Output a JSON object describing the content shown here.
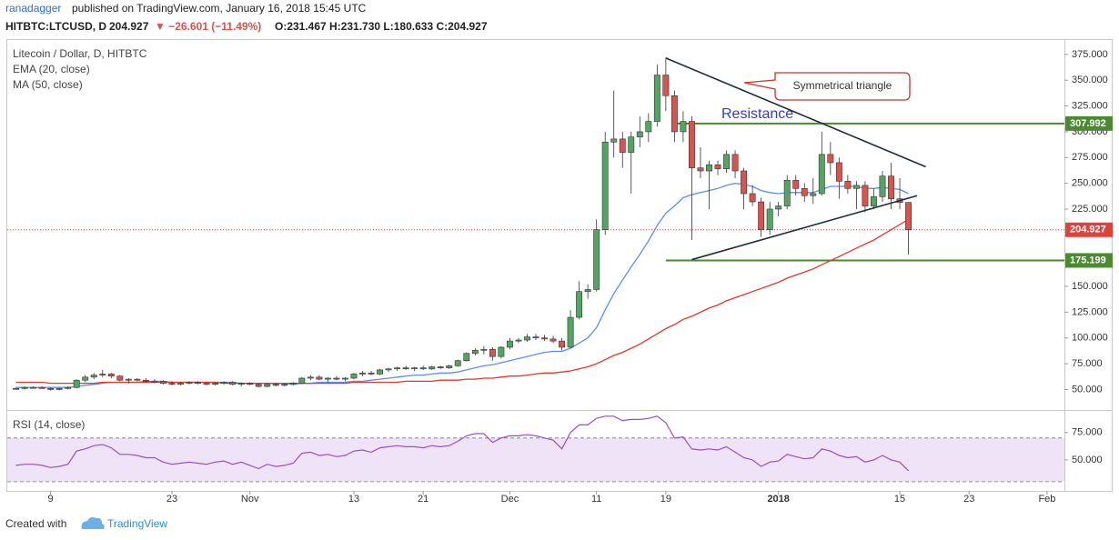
{
  "header": {
    "author": "ranadagger",
    "published": "published on TradingView.com, January 16, 2018 15:45 UTC",
    "symbol": "HITBTC:LTCUSD, D",
    "price": "204.927",
    "change": "▼ −26.601 (−11.49%)",
    "ohlc": "O:231.467 H:231.730 L:180.633 C:204.927"
  },
  "footer": {
    "created": "Created with",
    "brand": "TradingView"
  },
  "chart_data": {
    "type": "candlestick",
    "title": "Litecoin / Dollar, D, HITBTC",
    "xlim": [
      "2017-10-04",
      "2018-02-03"
    ],
    "xticks": [
      {
        "value": "2017-10-09",
        "label": "9"
      },
      {
        "value": "2017-10-23",
        "label": "23"
      },
      {
        "value": "2017-11-01",
        "label": "Nov"
      },
      {
        "value": "2017-11-13",
        "label": "13"
      },
      {
        "value": "2017-11-21",
        "label": "21"
      },
      {
        "value": "2017-12-01",
        "label": "Dec"
      },
      {
        "value": "2017-12-11",
        "label": "11"
      },
      {
        "value": "2017-12-19",
        "label": "19"
      },
      {
        "value": "2018-01-01",
        "label": "2018"
      },
      {
        "value": "2018-01-15",
        "label": "15"
      },
      {
        "value": "2018-01-23",
        "label": "23"
      },
      {
        "value": "2018-02-01",
        "label": "Feb"
      }
    ],
    "ylim": [
      31,
      389
    ],
    "yticks": [
      {
        "value": 50,
        "label": "50.000"
      },
      {
        "value": 75,
        "label": "75.000"
      },
      {
        "value": 100,
        "label": "100.000"
      },
      {
        "value": 125,
        "label": "125.000"
      },
      {
        "value": 150,
        "label": "150.000"
      },
      {
        "value": 225,
        "label": "225.000"
      },
      {
        "value": 250,
        "label": "250.000"
      },
      {
        "value": 275,
        "label": "275.000"
      },
      {
        "value": 300,
        "label": "300.000"
      },
      {
        "value": 325,
        "label": "325.000"
      },
      {
        "value": 350,
        "label": "350.000"
      },
      {
        "value": 375,
        "label": "375.000"
      }
    ],
    "up_color": "#53a562",
    "down_color": "#d9534f",
    "x": [
      "2017-10-05",
      "2017-10-06",
      "2017-10-07",
      "2017-10-08",
      "2017-10-09",
      "2017-10-10",
      "2017-10-11",
      "2017-10-12",
      "2017-10-13",
      "2017-10-14",
      "2017-10-15",
      "2017-10-16",
      "2017-10-17",
      "2017-10-18",
      "2017-10-19",
      "2017-10-20",
      "2017-10-21",
      "2017-10-22",
      "2017-10-23",
      "2017-10-24",
      "2017-10-25",
      "2017-10-26",
      "2017-10-27",
      "2017-10-28",
      "2017-10-29",
      "2017-10-30",
      "2017-10-31",
      "2017-11-01",
      "2017-11-02",
      "2017-11-03",
      "2017-11-04",
      "2017-11-05",
      "2017-11-06",
      "2017-11-07",
      "2017-11-08",
      "2017-11-09",
      "2017-11-10",
      "2017-11-11",
      "2017-11-12",
      "2017-11-13",
      "2017-11-14",
      "2017-11-15",
      "2017-11-16",
      "2017-11-17",
      "2017-11-18",
      "2017-11-19",
      "2017-11-20",
      "2017-11-21",
      "2017-11-22",
      "2017-11-23",
      "2017-11-24",
      "2017-11-25",
      "2017-11-26",
      "2017-11-27",
      "2017-11-28",
      "2017-11-29",
      "2017-11-30",
      "2017-12-01",
      "2017-12-02",
      "2017-12-03",
      "2017-12-04",
      "2017-12-05",
      "2017-12-06",
      "2017-12-07",
      "2017-12-08",
      "2017-12-09",
      "2017-12-10",
      "2017-12-11",
      "2017-12-12",
      "2017-12-13",
      "2017-12-14",
      "2017-12-15",
      "2017-12-16",
      "2017-12-17",
      "2017-12-18",
      "2017-12-19",
      "2017-12-20",
      "2017-12-21",
      "2017-12-22",
      "2017-12-23",
      "2017-12-24",
      "2017-12-25",
      "2017-12-26",
      "2017-12-27",
      "2017-12-28",
      "2017-12-29",
      "2017-12-30",
      "2017-12-31",
      "2018-01-01",
      "2018-01-02",
      "2018-01-03",
      "2018-01-04",
      "2018-01-05",
      "2018-01-06",
      "2018-01-07",
      "2018-01-08",
      "2018-01-09",
      "2018-01-10",
      "2018-01-11",
      "2018-01-12",
      "2018-01-13",
      "2018-01-14",
      "2018-01-15",
      "2018-01-16"
    ],
    "open": [
      51,
      51,
      52,
      52,
      51,
      50,
      51,
      52,
      59,
      62,
      64,
      65,
      63,
      59,
      60,
      59,
      58,
      58,
      56,
      55,
      56,
      57,
      56,
      55,
      56,
      57,
      55,
      56,
      55,
      53,
      55,
      54,
      55,
      56,
      61,
      62,
      60,
      61,
      60,
      61,
      65,
      66,
      65,
      69,
      70,
      71,
      70,
      71,
      70,
      72,
      71,
      73,
      78,
      85,
      88,
      89,
      82,
      91,
      97,
      98,
      101,
      100,
      99,
      97,
      91,
      120,
      145,
      147,
      205,
      290,
      293,
      280,
      295,
      300,
      310,
      355,
      335,
      300,
      310,
      265,
      262,
      268,
      264,
      278,
      262,
      240,
      232,
      205,
      225,
      228,
      253,
      245,
      238,
      240,
      278,
      270,
      252,
      245,
      248,
      228,
      237,
      257,
      235,
      231.467
    ],
    "high": [
      52,
      53,
      53,
      53,
      52,
      52,
      53,
      60,
      64,
      66,
      69,
      66,
      64,
      61,
      61,
      61,
      60,
      59,
      58,
      57,
      58,
      58,
      57,
      57,
      58,
      58,
      57,
      57,
      56,
      56,
      56,
      56,
      57,
      62,
      64,
      64,
      62,
      63,
      62,
      66,
      68,
      68,
      70,
      71,
      72,
      73,
      72,
      73,
      73,
      73,
      74,
      79,
      86,
      90,
      92,
      91,
      92,
      100,
      100,
      104,
      104,
      103,
      102,
      100,
      127,
      155,
      152,
      215,
      300,
      340,
      300,
      300,
      315,
      318,
      365,
      372,
      340,
      320,
      315,
      285,
      272,
      272,
      282,
      282,
      265,
      248,
      236,
      232,
      232,
      258,
      258,
      250,
      255,
      300,
      290,
      275,
      258,
      252,
      252,
      245,
      262,
      270,
      255,
      231.73
    ],
    "low": [
      50,
      50,
      51,
      51,
      49,
      49,
      50,
      51,
      57,
      60,
      62,
      61,
      58,
      56,
      58,
      57,
      56,
      55,
      54,
      54,
      55,
      55,
      54,
      54,
      55,
      54,
      53,
      54,
      52,
      52,
      53,
      53,
      54,
      55,
      59,
      59,
      57,
      59,
      58,
      60,
      63,
      64,
      64,
      67,
      68,
      69,
      68,
      69,
      69,
      70,
      70,
      72,
      77,
      83,
      84,
      78,
      80,
      89,
      95,
      96,
      98,
      97,
      95,
      88,
      90,
      118,
      138,
      145,
      200,
      275,
      265,
      240,
      285,
      290,
      305,
      320,
      290,
      290,
      195,
      255,
      225,
      258,
      260,
      255,
      225,
      228,
      198,
      200,
      218,
      225,
      238,
      232,
      230,
      238,
      258,
      235,
      240,
      225,
      222,
      225,
      232,
      225,
      225,
      180.633
    ],
    "close": [
      51,
      52,
      52,
      51,
      50,
      51,
      52,
      59,
      62,
      64,
      65,
      63,
      59,
      60,
      59,
      58,
      58,
      56,
      55,
      56,
      57,
      56,
      55,
      56,
      57,
      55,
      56,
      55,
      53,
      55,
      54,
      55,
      56,
      61,
      62,
      60,
      61,
      60,
      61,
      65,
      66,
      65,
      69,
      70,
      71,
      70,
      71,
      70,
      72,
      71,
      73,
      78,
      85,
      88,
      89,
      82,
      91,
      97,
      98,
      101,
      100,
      99,
      97,
      91,
      120,
      145,
      147,
      205,
      290,
      293,
      280,
      295,
      300,
      310,
      355,
      335,
      300,
      310,
      265,
      262,
      268,
      264,
      278,
      262,
      240,
      232,
      205,
      225,
      228,
      253,
      245,
      238,
      240,
      278,
      270,
      252,
      245,
      248,
      228,
      237,
      257,
      235,
      231.467,
      204.927
    ],
    "series": [
      {
        "name": "EMA (20, close)",
        "color": "#5b8ff0",
        "values": [
          52,
          52,
          52,
          52,
          52,
          52,
          52,
          53,
          54,
          55,
          56,
          57,
          57,
          57,
          57,
          58,
          58,
          58,
          57,
          57,
          57,
          57,
          57,
          57,
          57,
          57,
          56,
          56,
          56,
          56,
          56,
          56,
          55,
          56,
          56,
          57,
          57,
          57,
          57,
          58,
          58,
          59,
          60,
          61,
          62,
          63,
          64,
          64,
          65,
          66,
          66,
          67,
          69,
          71,
          73,
          74,
          76,
          78,
          80,
          82,
          84,
          86,
          87,
          87,
          90,
          95,
          100,
          110,
          127,
          143,
          156,
          169,
          181,
          194,
          209,
          221,
          228,
          236,
          239,
          241,
          243,
          245,
          248,
          250,
          249,
          247,
          243,
          241,
          240,
          241,
          241,
          241,
          241,
          244,
          247,
          247,
          247,
          247,
          245,
          245,
          246,
          245,
          244,
          240
        ]
      },
      {
        "name": "MA (50, close)",
        "color": "#e0392d",
        "values": [
          57,
          57,
          57,
          57,
          56,
          56,
          56,
          56,
          56,
          56,
          57,
          57,
          57,
          57,
          57,
          57,
          57,
          57,
          57,
          57,
          57,
          57,
          57,
          57,
          56,
          56,
          56,
          56,
          56,
          56,
          56,
          56,
          56,
          56,
          56,
          56,
          56,
          56,
          56,
          57,
          57,
          57,
          57,
          57,
          57,
          58,
          58,
          58,
          58,
          59,
          59,
          59,
          60,
          60,
          61,
          61,
          62,
          63,
          63,
          64,
          65,
          66,
          66,
          67,
          68,
          70,
          72,
          75,
          79,
          83,
          86,
          90,
          94,
          99,
          104,
          109,
          113,
          118,
          121,
          125,
          129,
          132,
          136,
          139,
          142,
          145,
          148,
          151,
          154,
          158,
          161,
          164,
          167,
          171,
          175,
          179,
          183,
          187,
          191,
          195,
          200,
          205,
          210,
          215
        ]
      }
    ],
    "last_price": {
      "value": 204.927,
      "label": "204.927",
      "color": "#e0413a"
    },
    "levels": [
      {
        "value": 307.992,
        "from": "2017-12-20",
        "color": "#4b8b2f"
      },
      {
        "value": 175.199,
        "from": "2017-12-19",
        "color": "#4b8b2f"
      }
    ],
    "trendlines": [
      {
        "x": [
          "2017-12-19",
          "2018-01-18"
        ],
        "y": [
          371.5,
          266
        ]
      },
      {
        "x": [
          "2017-12-22",
          "2018-01-17"
        ],
        "y": [
          176,
          238
        ]
      }
    ],
    "annotations": {
      "resistance": "Resistance",
      "callout": "Symmetrical triangle"
    },
    "rsi": {
      "name": "RSI (14, close)",
      "color": "#9b4fc4",
      "ylim": [
        21.6,
        94.8
      ],
      "yticks": [
        {
          "value": 50,
          "label": "50.000"
        },
        {
          "value": 75,
          "label": "75.000"
        }
      ],
      "bands": [
        30,
        70
      ],
      "values": [
        45,
        46,
        46,
        45,
        43,
        44,
        46,
        58,
        60,
        63,
        64,
        61,
        55,
        55,
        54,
        52,
        52,
        48,
        46,
        47,
        48,
        47,
        46,
        48,
        49,
        46,
        48,
        45,
        42,
        46,
        44,
        45,
        47,
        56,
        57,
        54,
        55,
        53,
        54,
        58,
        59,
        57,
        61,
        62,
        63,
        62,
        62,
        61,
        63,
        62,
        63,
        67,
        72,
        74,
        74,
        66,
        70,
        72,
        72,
        73,
        72,
        70,
        68,
        60,
        75,
        82,
        82,
        88,
        90,
        90,
        86,
        87,
        87,
        88,
        90,
        84,
        70,
        71,
        60,
        59,
        60,
        59,
        62,
        57,
        52,
        50,
        44,
        48,
        49,
        55,
        53,
        51,
        52,
        60,
        58,
        54,
        52,
        53,
        48,
        50,
        54,
        50,
        48,
        40
      ]
    }
  }
}
